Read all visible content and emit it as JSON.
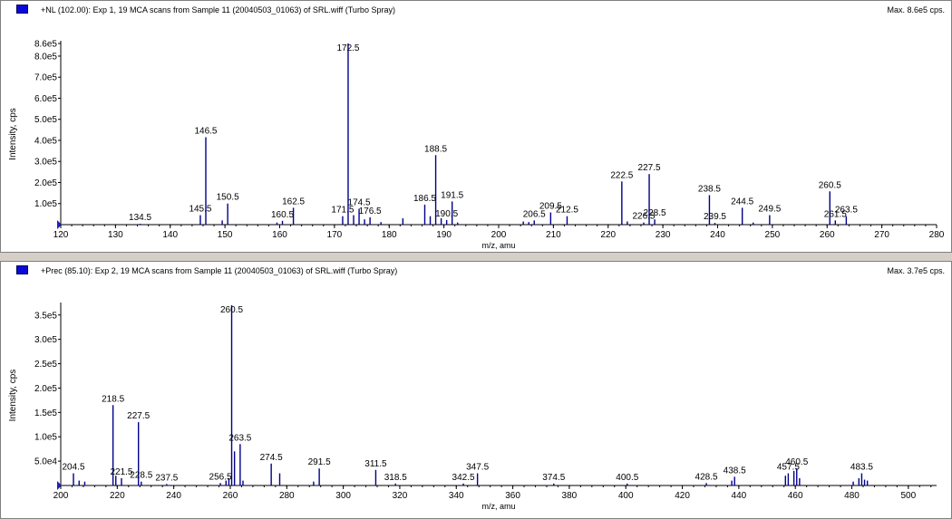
{
  "colors": {
    "peak": "#00008b",
    "axis": "#000000",
    "marker": "#0a0ad8"
  },
  "chart_data": [
    {
      "type": "bar",
      "title": "+NL (102.00): Exp 1, 19 MCA scans from Sample 11 (20040503_01063) of SRL.wiff (Turbo Spray)",
      "max_label": "Max. 8.6e5 cps.",
      "xlabel": "m/z, amu",
      "ylabel": "Intensity, cps",
      "xlim": [
        120,
        280
      ],
      "ylim": [
        0,
        860000
      ],
      "xticks": [
        120,
        130,
        140,
        150,
        160,
        170,
        180,
        190,
        200,
        210,
        220,
        230,
        240,
        250,
        260,
        270,
        280
      ],
      "yticks": [
        {
          "v": 100000,
          "label": "1.0e5"
        },
        {
          "v": 200000,
          "label": "2.0e5"
        },
        {
          "v": 300000,
          "label": "3.0e5"
        },
        {
          "v": 400000,
          "label": "4.0e5"
        },
        {
          "v": 500000,
          "label": "5.0e5"
        },
        {
          "v": 600000,
          "label": "6.0e5"
        },
        {
          "v": 700000,
          "label": "7.0e5"
        },
        {
          "v": 800000,
          "label": "8.0e5"
        },
        {
          "v": 860000,
          "label": "8.6e5"
        }
      ],
      "peaks": [
        {
          "x": 134.5,
          "y": 4000,
          "label": "134.5"
        },
        {
          "x": 145.5,
          "y": 45000,
          "label": "145.5"
        },
        {
          "x": 146.5,
          "y": 415000,
          "label": "146.5"
        },
        {
          "x": 149.5,
          "y": 20000
        },
        {
          "x": 150.5,
          "y": 100000,
          "label": "150.5"
        },
        {
          "x": 159.5,
          "y": 10000
        },
        {
          "x": 160.5,
          "y": 18000,
          "label": "160.5"
        },
        {
          "x": 162.5,
          "y": 80000,
          "label": "162.5"
        },
        {
          "x": 171.5,
          "y": 40000,
          "label": "171.5"
        },
        {
          "x": 172.5,
          "y": 860000,
          "label": "172.5"
        },
        {
          "x": 173.5,
          "y": 45000
        },
        {
          "x": 174.5,
          "y": 75000,
          "label": "174.5"
        },
        {
          "x": 175.5,
          "y": 25000
        },
        {
          "x": 176.5,
          "y": 35000,
          "label": "176.5"
        },
        {
          "x": 178.5,
          "y": 12000
        },
        {
          "x": 182.5,
          "y": 30000
        },
        {
          "x": 186.5,
          "y": 95000,
          "label": "186.5"
        },
        {
          "x": 187.5,
          "y": 40000
        },
        {
          "x": 188.5,
          "y": 330000,
          "label": "188.5"
        },
        {
          "x": 189.5,
          "y": 30000
        },
        {
          "x": 190.5,
          "y": 22000,
          "label": "190.5"
        },
        {
          "x": 191.5,
          "y": 110000,
          "label": "191.5"
        },
        {
          "x": 192.5,
          "y": 10000
        },
        {
          "x": 204.5,
          "y": 15000
        },
        {
          "x": 205.5,
          "y": 12000
        },
        {
          "x": 206.5,
          "y": 20000,
          "label": "206.5"
        },
        {
          "x": 209.5,
          "y": 58000,
          "label": "209.5"
        },
        {
          "x": 212.5,
          "y": 40000,
          "label": "212.5"
        },
        {
          "x": 222.5,
          "y": 205000,
          "label": "222.5"
        },
        {
          "x": 223.5,
          "y": 15000
        },
        {
          "x": 226.5,
          "y": 10000,
          "label": "226.5"
        },
        {
          "x": 227.5,
          "y": 240000,
          "label": "227.5"
        },
        {
          "x": 228.5,
          "y": 25000,
          "label": "228.5"
        },
        {
          "x": 238.5,
          "y": 140000,
          "label": "238.5"
        },
        {
          "x": 239.5,
          "y": 8000,
          "label": "239.5"
        },
        {
          "x": 244.5,
          "y": 80000,
          "label": "244.5"
        },
        {
          "x": 246.5,
          "y": 10000
        },
        {
          "x": 249.5,
          "y": 45000,
          "label": "249.5"
        },
        {
          "x": 260.5,
          "y": 158000,
          "label": "260.5"
        },
        {
          "x": 261.5,
          "y": 20000,
          "label": "261.5"
        },
        {
          "x": 263.5,
          "y": 40000,
          "label": "263.5"
        }
      ]
    },
    {
      "type": "bar",
      "title": "+Prec (85.10): Exp 2, 19 MCA scans from Sample 11 (20040503_01063) of SRL.wiff (Turbo Spray)",
      "max_label": "Max. 3.7e5 cps.",
      "xlabel": "m/z, amu",
      "ylabel": "Intensity, cps",
      "xlim": [
        200,
        510
      ],
      "ylim": [
        0,
        370000
      ],
      "xticks": [
        200,
        220,
        240,
        260,
        280,
        300,
        320,
        340,
        360,
        380,
        400,
        420,
        440,
        460,
        480,
        500
      ],
      "yticks": [
        {
          "v": 50000,
          "label": "5.0e4"
        },
        {
          "v": 100000,
          "label": "1.0e5"
        },
        {
          "v": 150000,
          "label": "1.5e5"
        },
        {
          "v": 200000,
          "label": "2.0e5"
        },
        {
          "v": 250000,
          "label": "2.5e5"
        },
        {
          "v": 300000,
          "label": "3.0e5"
        },
        {
          "v": 350000,
          "label": "3.5e5"
        }
      ],
      "peaks": [
        {
          "x": 204.5,
          "y": 25000,
          "label": "204.5"
        },
        {
          "x": 206.5,
          "y": 10000
        },
        {
          "x": 208.5,
          "y": 8000
        },
        {
          "x": 218.5,
          "y": 165000,
          "label": "218.5"
        },
        {
          "x": 219.5,
          "y": 20000
        },
        {
          "x": 221.5,
          "y": 15000,
          "label": "221.5"
        },
        {
          "x": 227.5,
          "y": 130000,
          "label": "227.5"
        },
        {
          "x": 228.5,
          "y": 8000,
          "label": "228.5"
        },
        {
          "x": 237.5,
          "y": 3000,
          "label": "237.5"
        },
        {
          "x": 256.5,
          "y": 5000,
          "label": "256.5"
        },
        {
          "x": 258.5,
          "y": 10000
        },
        {
          "x": 259.5,
          "y": 15000
        },
        {
          "x": 260.5,
          "y": 370000,
          "label": "260.5"
        },
        {
          "x": 261.5,
          "y": 70000
        },
        {
          "x": 263.5,
          "y": 85000,
          "label": "263.5"
        },
        {
          "x": 264.5,
          "y": 10000
        },
        {
          "x": 274.5,
          "y": 45000,
          "label": "274.5"
        },
        {
          "x": 277.5,
          "y": 25000
        },
        {
          "x": 289.5,
          "y": 8000
        },
        {
          "x": 291.5,
          "y": 35000,
          "label": "291.5"
        },
        {
          "x": 311.5,
          "y": 32000,
          "label": "311.5"
        },
        {
          "x": 318.5,
          "y": 4000,
          "label": "318.5"
        },
        {
          "x": 342.5,
          "y": 4000,
          "label": "342.5"
        },
        {
          "x": 347.5,
          "y": 25000,
          "label": "347.5"
        },
        {
          "x": 374.5,
          "y": 4000,
          "label": "374.5"
        },
        {
          "x": 400.5,
          "y": 4000,
          "label": "400.5"
        },
        {
          "x": 428.5,
          "y": 5000,
          "label": "428.5"
        },
        {
          "x": 437.5,
          "y": 10000
        },
        {
          "x": 438.5,
          "y": 18000,
          "label": "438.5"
        },
        {
          "x": 456.5,
          "y": 20000
        },
        {
          "x": 457.5,
          "y": 25000,
          "label": "457.5"
        },
        {
          "x": 459.5,
          "y": 30000
        },
        {
          "x": 460.5,
          "y": 35000,
          "label": "460.5"
        },
        {
          "x": 461.5,
          "y": 15000
        },
        {
          "x": 480.5,
          "y": 8000
        },
        {
          "x": 482.5,
          "y": 15000
        },
        {
          "x": 483.5,
          "y": 25000,
          "label": "483.5"
        },
        {
          "x": 484.5,
          "y": 12000
        },
        {
          "x": 485.5,
          "y": 10000
        }
      ]
    }
  ]
}
